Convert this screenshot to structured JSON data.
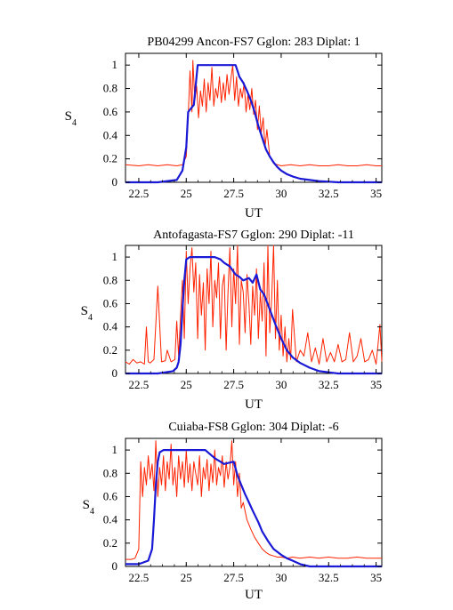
{
  "chart_data": [
    {
      "type": "line",
      "title": "PB04299  Ancon-FS7  Gglon: 283  Diplat: 1",
      "xlabel": "UT",
      "ylabel": "S",
      "ylabel_sub": "4",
      "xlim": [
        21.8,
        35.3
      ],
      "ylim": [
        0,
        1.1
      ],
      "xticks": [
        22.5,
        25,
        27.5,
        30,
        32.5,
        35
      ],
      "xtick_labels": [
        "22.5",
        "25",
        "27.5",
        "30",
        "32.5",
        "35"
      ],
      "yticks": [
        0,
        0.2,
        0.4,
        0.6,
        0.8,
        1
      ],
      "ytick_labels": [
        "0",
        "0.2",
        "0.4",
        "0.6",
        "0.8",
        "1"
      ],
      "grid": false,
      "series": [
        {
          "color": "#ff2200",
          "x": [
            21.8,
            22.5,
            23.0,
            23.5,
            24.0,
            24.5,
            24.8,
            25.0,
            25.1,
            25.2,
            25.3,
            25.35,
            25.45,
            25.55,
            25.65,
            25.75,
            25.85,
            25.95,
            26.05,
            26.15,
            26.25,
            26.35,
            26.45,
            26.55,
            26.65,
            26.75,
            26.85,
            26.95,
            27.05,
            27.15,
            27.25,
            27.35,
            27.45,
            27.55,
            27.65,
            27.75,
            27.85,
            27.95,
            28.05,
            28.15,
            28.25,
            28.35,
            28.45,
            28.55,
            28.65,
            28.75,
            28.85,
            28.95,
            29.05,
            29.15,
            29.25,
            29.4,
            29.6,
            29.8,
            30.0,
            30.5,
            31.0,
            31.5,
            32.0,
            32.5,
            33.0,
            33.5,
            34.0,
            34.5,
            35.0,
            35.3
          ],
          "y": [
            0.15,
            0.14,
            0.15,
            0.14,
            0.15,
            0.14,
            0.15,
            0.22,
            0.55,
            0.95,
            0.6,
            1.04,
            0.7,
            0.82,
            0.55,
            0.78,
            0.65,
            0.88,
            0.6,
            0.85,
            0.7,
            0.98,
            0.65,
            0.8,
            0.72,
            0.9,
            0.68,
            0.85,
            0.7,
            0.92,
            0.75,
            0.88,
            1.0,
            0.7,
            0.9,
            0.65,
            0.8,
            0.72,
            0.85,
            0.6,
            0.75,
            0.62,
            0.8,
            0.58,
            0.7,
            0.45,
            0.65,
            0.42,
            0.55,
            0.3,
            0.45,
            0.22,
            0.16,
            0.15,
            0.14,
            0.15,
            0.14,
            0.15,
            0.14,
            0.14,
            0.15,
            0.14,
            0.14,
            0.15,
            0.14,
            0.14
          ]
        },
        {
          "color": "#1a1ad6",
          "x": [
            21.8,
            23.5,
            24.5,
            24.8,
            25.0,
            25.1,
            25.2,
            25.3,
            25.4,
            25.6,
            27.6,
            27.7,
            27.8,
            28.0,
            28.2,
            28.4,
            28.6,
            28.8,
            29.0,
            29.2,
            29.4,
            29.6,
            29.8,
            30.0,
            30.3,
            30.6,
            31.0,
            31.5,
            32.0,
            32.5,
            33.0,
            33.5,
            34.0,
            35.3
          ],
          "y": [
            0.0,
            0.0,
            0.02,
            0.1,
            0.3,
            0.6,
            0.62,
            0.64,
            0.66,
            1.0,
            1.0,
            0.95,
            0.9,
            0.85,
            0.78,
            0.7,
            0.6,
            0.48,
            0.38,
            0.28,
            0.22,
            0.17,
            0.13,
            0.1,
            0.07,
            0.05,
            0.03,
            0.02,
            0.01,
            0.005,
            0.0,
            0.0,
            0.0,
            0.0
          ]
        }
      ]
    },
    {
      "type": "line",
      "title": "Antofagasta-FS7  Gglon: 290  Diplat: -11",
      "xlabel": "UT",
      "ylabel": "S",
      "ylabel_sub": "4",
      "xlim": [
        21.8,
        35.3
      ],
      "ylim": [
        0,
        1.1
      ],
      "xticks": [
        22.5,
        25,
        27.5,
        30,
        32.5,
        35
      ],
      "xtick_labels": [
        "22.5",
        "25",
        "27.5",
        "30",
        "32.5",
        "35"
      ],
      "yticks": [
        0,
        0.2,
        0.4,
        0.6,
        0.8,
        1
      ],
      "ytick_labels": [
        "0",
        "0.2",
        "0.4",
        "0.6",
        "0.8",
        "1"
      ],
      "grid": false,
      "series": [
        {
          "color": "#ff2200",
          "x": [
            21.8,
            22.0,
            22.2,
            22.4,
            22.6,
            22.8,
            22.9,
            23.0,
            23.1,
            23.3,
            23.5,
            23.7,
            23.9,
            24.0,
            24.2,
            24.4,
            24.5,
            24.6,
            24.7,
            24.8,
            24.9,
            25.0,
            25.1,
            25.2,
            25.3,
            25.4,
            25.5,
            25.6,
            25.7,
            25.8,
            25.9,
            26.0,
            26.1,
            26.2,
            26.3,
            26.4,
            26.5,
            26.6,
            26.7,
            26.8,
            26.9,
            27.0,
            27.1,
            27.2,
            27.3,
            27.4,
            27.5,
            27.6,
            27.7,
            27.8,
            27.9,
            28.0,
            28.1,
            28.2,
            28.3,
            28.4,
            28.5,
            28.6,
            28.7,
            28.8,
            28.9,
            29.0,
            29.1,
            29.2,
            29.3,
            29.4,
            29.5,
            29.6,
            29.7,
            29.8,
            29.9,
            30.0,
            30.1,
            30.2,
            30.3,
            30.4,
            30.5,
            30.6,
            30.8,
            31.0,
            31.2,
            31.4,
            31.6,
            31.8,
            32.0,
            32.2,
            32.4,
            32.6,
            32.8,
            33.0,
            33.2,
            33.4,
            33.6,
            33.8,
            34.0,
            34.2,
            34.4,
            34.6,
            34.8,
            35.0,
            35.2,
            35.3
          ],
          "y": [
            0.1,
            0.08,
            0.12,
            0.09,
            0.1,
            0.08,
            0.4,
            0.1,
            0.09,
            0.12,
            0.75,
            0.1,
            0.11,
            0.2,
            0.1,
            0.12,
            0.45,
            0.15,
            0.5,
            0.8,
            0.3,
            1.05,
            0.6,
            0.9,
            1.08,
            0.7,
            0.95,
            0.3,
            0.85,
            0.5,
            0.78,
            0.2,
            0.9,
            0.6,
            1.05,
            0.4,
            0.8,
            0.65,
            0.95,
            0.3,
            0.75,
            0.85,
            0.2,
            0.7,
            1.08,
            0.4,
            0.9,
            0.6,
            1.1,
            0.25,
            0.8,
            0.7,
            0.35,
            0.85,
            0.6,
            0.25,
            0.75,
            0.5,
            0.9,
            0.3,
            0.7,
            0.45,
            0.95,
            0.15,
            1.1,
            0.35,
            0.65,
            1.1,
            0.3,
            0.8,
            0.2,
            0.5,
            0.15,
            0.4,
            0.1,
            0.3,
            0.12,
            0.55,
            0.1,
            0.2,
            0.15,
            0.35,
            0.1,
            0.22,
            0.08,
            0.3,
            0.1,
            0.18,
            0.1,
            0.25,
            0.1,
            0.12,
            0.35,
            0.1,
            0.15,
            0.3,
            0.1,
            0.12,
            0.2,
            0.08,
            0.42,
            0.1
          ]
        },
        {
          "color": "#1a1ad6",
          "x": [
            21.8,
            23.5,
            24.3,
            24.5,
            24.6,
            24.7,
            24.8,
            24.9,
            25.0,
            25.2,
            26.5,
            26.8,
            27.0,
            27.3,
            27.6,
            27.8,
            28.0,
            28.3,
            28.5,
            28.7,
            28.9,
            29.1,
            29.4,
            29.7,
            30.0,
            30.3,
            30.6,
            31.0,
            31.5,
            32.0,
            32.5,
            33.0,
            35.3
          ],
          "y": [
            0.0,
            0.0,
            0.02,
            0.05,
            0.1,
            0.25,
            0.55,
            0.8,
            0.98,
            1.0,
            1.0,
            0.98,
            0.95,
            0.92,
            0.85,
            0.83,
            0.8,
            0.82,
            0.78,
            0.85,
            0.72,
            0.68,
            0.55,
            0.42,
            0.3,
            0.2,
            0.14,
            0.09,
            0.05,
            0.02,
            0.01,
            0.0,
            0.0
          ]
        }
      ]
    },
    {
      "type": "line",
      "title": "Cuiaba-FS8  Gglon: 304  Diplat: -6",
      "xlabel": "UT",
      "ylabel": "S",
      "ylabel_sub": "4",
      "xlim": [
        21.8,
        35.3
      ],
      "ylim": [
        0,
        1.1
      ],
      "xticks": [
        22.5,
        25,
        27.5,
        30,
        32.5,
        35
      ],
      "xtick_labels": [
        "22.5",
        "25",
        "27.5",
        "30",
        "32.5",
        "35"
      ],
      "yticks": [
        0,
        0.2,
        0.4,
        0.6,
        0.8,
        1
      ],
      "ytick_labels": [
        "0",
        "0.2",
        "0.4",
        "0.6",
        "0.8",
        "1"
      ],
      "grid": false,
      "series": [
        {
          "color": "#ff2200",
          "x": [
            21.8,
            22.1,
            22.3,
            22.5,
            22.6,
            22.7,
            22.8,
            22.9,
            23.0,
            23.1,
            23.2,
            23.3,
            23.4,
            23.5,
            23.6,
            23.7,
            23.8,
            23.9,
            24.0,
            24.1,
            24.2,
            24.3,
            24.4,
            24.5,
            24.6,
            24.7,
            24.8,
            24.9,
            25.0,
            25.1,
            25.2,
            25.3,
            25.4,
            25.5,
            25.6,
            25.7,
            25.8,
            25.9,
            26.0,
            26.1,
            26.2,
            26.3,
            26.4,
            26.5,
            26.6,
            26.7,
            26.8,
            26.9,
            27.0,
            27.1,
            27.2,
            27.3,
            27.4,
            27.5,
            27.6,
            27.7,
            27.8,
            27.9,
            28.0,
            28.2,
            28.4,
            28.6,
            28.8,
            29.0,
            29.2,
            29.4,
            29.6,
            29.8,
            30.0,
            30.3,
            30.6,
            31.0,
            31.5,
            32.0,
            32.5,
            33.0,
            33.5,
            34.0,
            34.5,
            35.0,
            35.3
          ],
          "y": [
            0.06,
            0.06,
            0.07,
            0.15,
            0.9,
            0.6,
            0.85,
            0.7,
            0.95,
            0.75,
            0.88,
            0.65,
            1.08,
            0.6,
            0.85,
            0.7,
            0.95,
            0.65,
            0.9,
            0.75,
            1.05,
            0.7,
            0.85,
            0.6,
            0.95,
            0.75,
            0.9,
            0.68,
            1.0,
            0.72,
            0.88,
            0.65,
            0.9,
            0.8,
            0.7,
            0.95,
            0.6,
            0.85,
            0.75,
            0.92,
            0.65,
            0.88,
            0.72,
            1.0,
            0.7,
            0.85,
            0.78,
            0.95,
            0.68,
            0.9,
            0.75,
            0.85,
            1.08,
            0.7,
            0.9,
            0.6,
            0.8,
            0.5,
            0.55,
            0.4,
            0.32,
            0.25,
            0.2,
            0.15,
            0.12,
            0.1,
            0.09,
            0.08,
            0.08,
            0.07,
            0.08,
            0.07,
            0.08,
            0.07,
            0.08,
            0.07,
            0.07,
            0.08,
            0.07,
            0.07,
            0.07
          ]
        },
        {
          "color": "#1a1ad6",
          "x": [
            21.8,
            22.5,
            23.0,
            23.2,
            23.3,
            23.4,
            23.5,
            23.6,
            23.8,
            26.0,
            26.5,
            27.0,
            27.5,
            27.7,
            27.9,
            28.1,
            28.3,
            28.5,
            28.8,
            29.0,
            29.3,
            29.6,
            30.0,
            30.3,
            30.6,
            31.0,
            31.5,
            32.0,
            35.3
          ],
          "y": [
            0.02,
            0.02,
            0.05,
            0.15,
            0.4,
            0.7,
            0.9,
            0.98,
            1.0,
            1.0,
            0.93,
            0.88,
            0.9,
            0.78,
            0.7,
            0.62,
            0.55,
            0.48,
            0.38,
            0.3,
            0.22,
            0.15,
            0.1,
            0.07,
            0.05,
            0.02,
            0.0,
            0.0,
            0.0
          ]
        }
      ]
    }
  ]
}
